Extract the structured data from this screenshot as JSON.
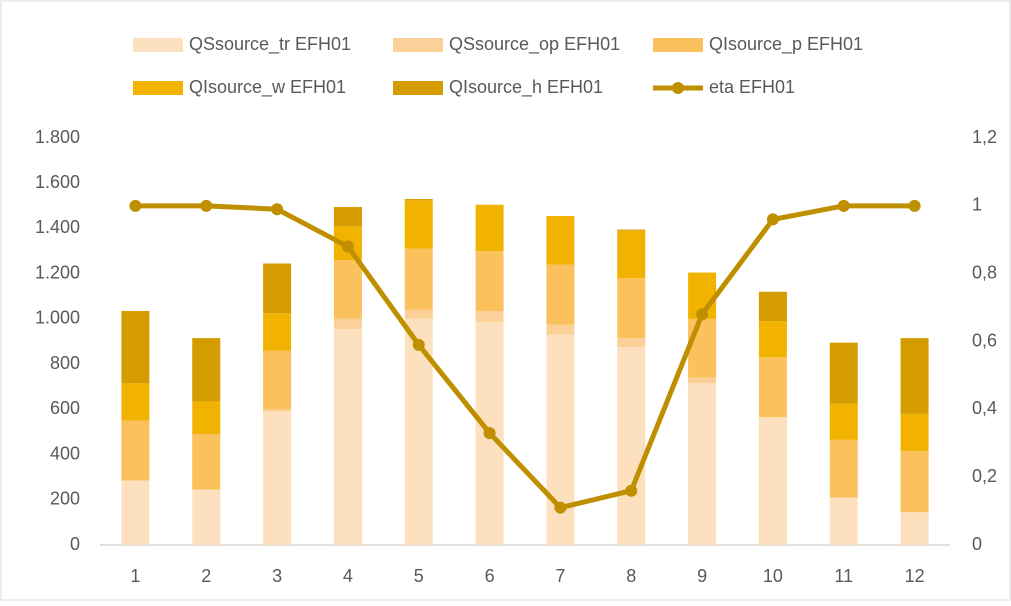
{
  "chart_data": {
    "type": "bar",
    "stacked": true,
    "categories": [
      "1",
      "2",
      "3",
      "4",
      "5",
      "6",
      "7",
      "8",
      "9",
      "10",
      "11",
      "12"
    ],
    "series": [
      {
        "name": "QSsource_tr EFH01",
        "color": "#fde0bd",
        "values": [
          285,
          245,
          590,
          955,
          1000,
          985,
          930,
          875,
          715,
          565,
          210,
          145
        ]
      },
      {
        "name": "QSsource_op EFH01",
        "color": "#fcd199",
        "values": [
          0,
          0,
          10,
          45,
          40,
          50,
          45,
          40,
          25,
          0,
          0,
          0
        ]
      },
      {
        "name": "QIsource_p EFH01",
        "color": "#fbc15c",
        "values": [
          265,
          245,
          260,
          260,
          270,
          265,
          265,
          265,
          260,
          265,
          255,
          270
        ]
      },
      {
        "name": "QIsource_w EFH01",
        "color": "#f2b200",
        "values": [
          165,
          145,
          165,
          150,
          215,
          205,
          215,
          210,
          205,
          160,
          160,
          165
        ]
      },
      {
        "name": "QIsource_h EFH01",
        "color": "#d49c00",
        "values": [
          320,
          280,
          220,
          85,
          5,
          0,
          0,
          5,
          0,
          130,
          270,
          335
        ]
      },
      {
        "name": "eta EFH01",
        "color": "#bf8f00",
        "type": "line",
        "axis": "y2",
        "values": [
          1,
          1,
          0.99,
          0.88,
          0.59,
          0.33,
          0.11,
          0.16,
          0.68,
          0.96,
          1,
          1
        ]
      }
    ],
    "ylim": [
      0,
      1800
    ],
    "yticks": [
      0,
      200,
      400,
      600,
      800,
      {
        "value": 1000,
        "label": "1.000"
      },
      {
        "value": 1200,
        "label": "1.200"
      },
      {
        "value": 1400,
        "label": "1.400"
      },
      {
        "value": 1600,
        "label": "1.600"
      },
      {
        "value": 1800,
        "label": "1.800"
      }
    ],
    "y2lim": [
      0,
      1.2
    ],
    "y2ticks": [
      0,
      {
        "value": 0.2,
        "label": "0,2"
      },
      {
        "value": 0.4,
        "label": "0,4"
      },
      {
        "value": 0.6,
        "label": "0,6"
      },
      {
        "value": 0.8,
        "label": "0,8"
      },
      1,
      {
        "value": 1.2,
        "label": "1,2"
      }
    ],
    "grid": false
  }
}
